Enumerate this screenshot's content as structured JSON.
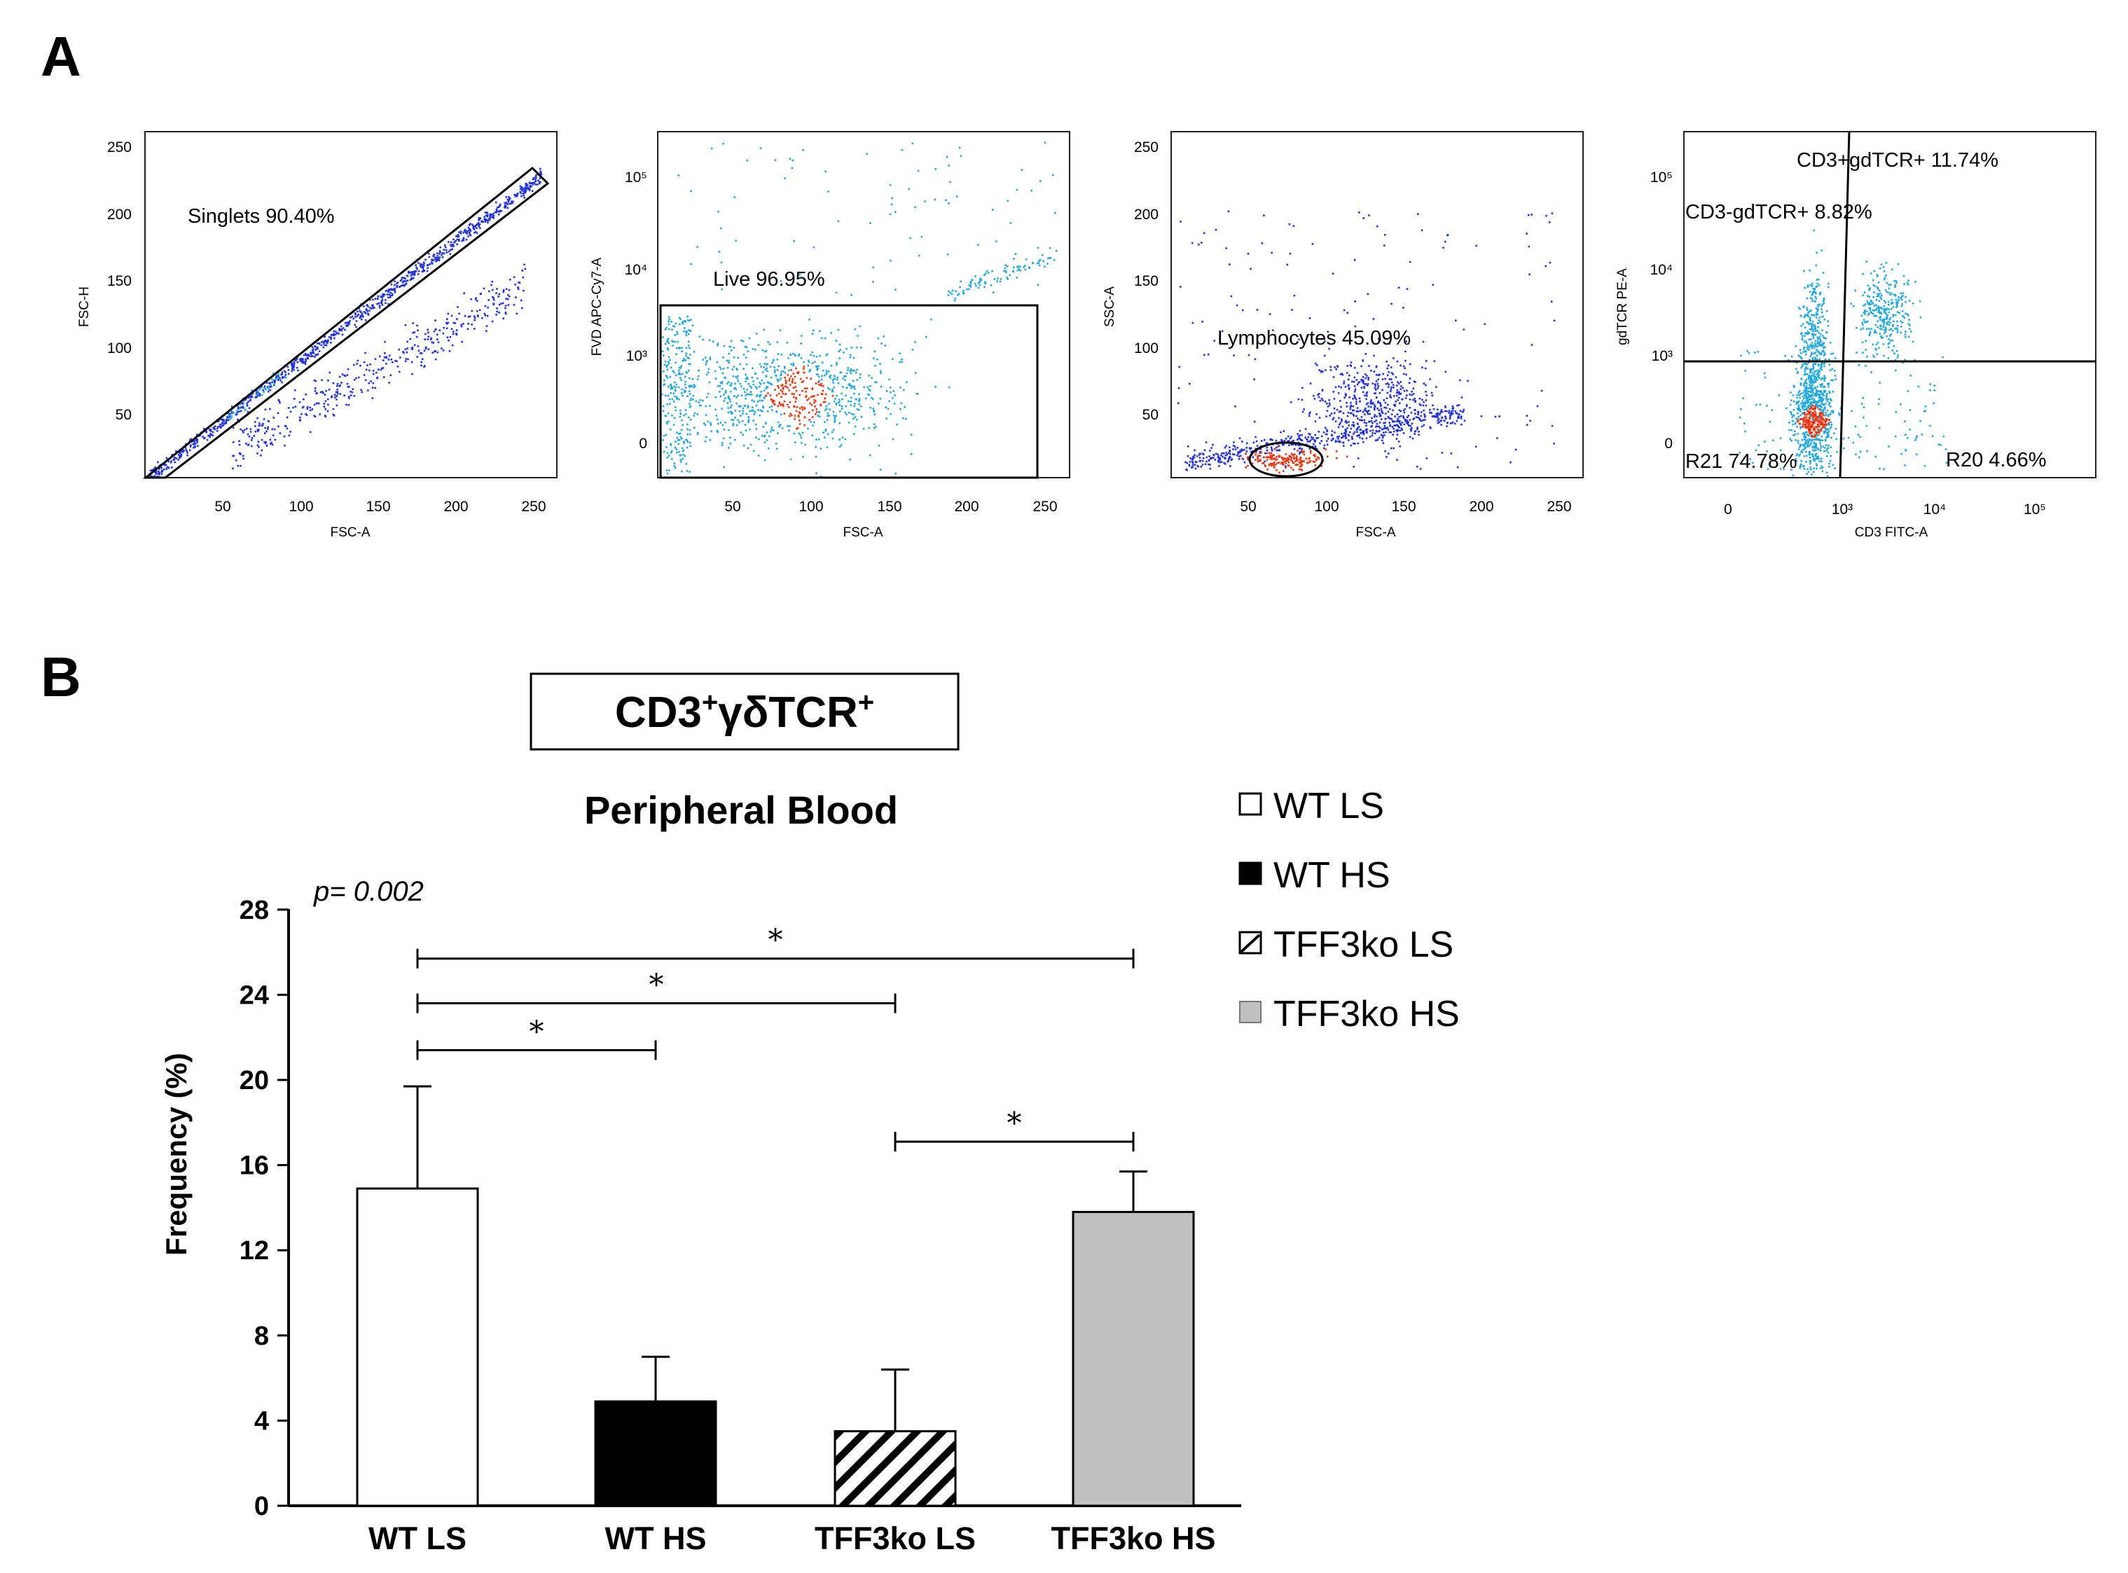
{
  "panel_a": {
    "label": "A",
    "plots": [
      {
        "gate": "Singlets 90.40%",
        "xlabel": "FSC-A",
        "ylabel": "FSC-H",
        "xticks": [
          "50",
          "100",
          "150",
          "200",
          "250"
        ],
        "yticks": [
          "50",
          "100",
          "150",
          "200",
          "250"
        ]
      },
      {
        "gate": "Live 96.95%",
        "xlabel": "FSC-A",
        "ylabel": "FVD APC-Cy7-A",
        "xticks": [
          "50",
          "100",
          "150",
          "200",
          "250"
        ],
        "yticks": [
          "0",
          "10³",
          "10⁴",
          "10⁵"
        ]
      },
      {
        "gate": "Lymphocytes 45.09%",
        "xlabel": "FSC-A",
        "ylabel": "SSC-A",
        "xticks": [
          "50",
          "100",
          "150",
          "200",
          "250"
        ],
        "yticks": [
          "50",
          "100",
          "150",
          "200",
          "250"
        ]
      },
      {
        "gate_top_right": "CD3+gdTCR+ 11.74%",
        "gate_top_left": "CD3-gdTCR+ 8.82%",
        "gate_bottom_left": "R21 74.78%",
        "gate_bottom_right": "R20 4.66%",
        "xlabel": "CD3 FITC-A",
        "ylabel": "gdTCR PE-A",
        "xticks": [
          "0",
          "10³",
          "10⁴",
          "10⁵"
        ],
        "yticks": [
          "0",
          "10³",
          "10⁴",
          "10⁵"
        ]
      }
    ]
  },
  "panel_b": {
    "label": "B",
    "title_main": "CD3",
    "title_sup1": "+",
    "title_mid": "γδTCR",
    "title_sup2": "+",
    "subtitle": "Peripheral Blood",
    "p_value": "p= 0.002",
    "legend": [
      "WT LS",
      "WT HS",
      "TFF3ko LS",
      "TFF3ko HS"
    ],
    "significance_marker": "*"
  },
  "colors": {
    "wt_ls": "#ffffff",
    "wt_hs": "#000000",
    "tff3ko_hs": "#c0c0c0",
    "flow_low": "#2233dd",
    "flow_mid": "#22aadd",
    "flow_high": "#ee3311"
  },
  "chart_data": {
    "type": "bar",
    "title": "CD3+γδTCR+ Peripheral Blood",
    "xlabel": "",
    "ylabel": "Frequency (%)",
    "ylim": [
      0,
      28
    ],
    "yticks": [
      0,
      4,
      8,
      12,
      16,
      20,
      24,
      28
    ],
    "categories": [
      "WT LS",
      "WT HS",
      "TFF3ko LS",
      "TFF3ko HS"
    ],
    "values": [
      14.9,
      4.9,
      3.5,
      13.8
    ],
    "error_upper": [
      4.8,
      2.1,
      2.9,
      1.9
    ],
    "fills": [
      "white",
      "black",
      "hatched",
      "gray"
    ],
    "comparisons": [
      {
        "from": 0,
        "to": 1,
        "level": 21.4,
        "label": "*"
      },
      {
        "from": 0,
        "to": 2,
        "level": 23.6,
        "label": "*"
      },
      {
        "from": 0,
        "to": 3,
        "level": 25.7,
        "label": "*"
      },
      {
        "from": 2,
        "to": 3,
        "level": 17.1,
        "label": "*"
      }
    ],
    "legend_position": "right"
  }
}
